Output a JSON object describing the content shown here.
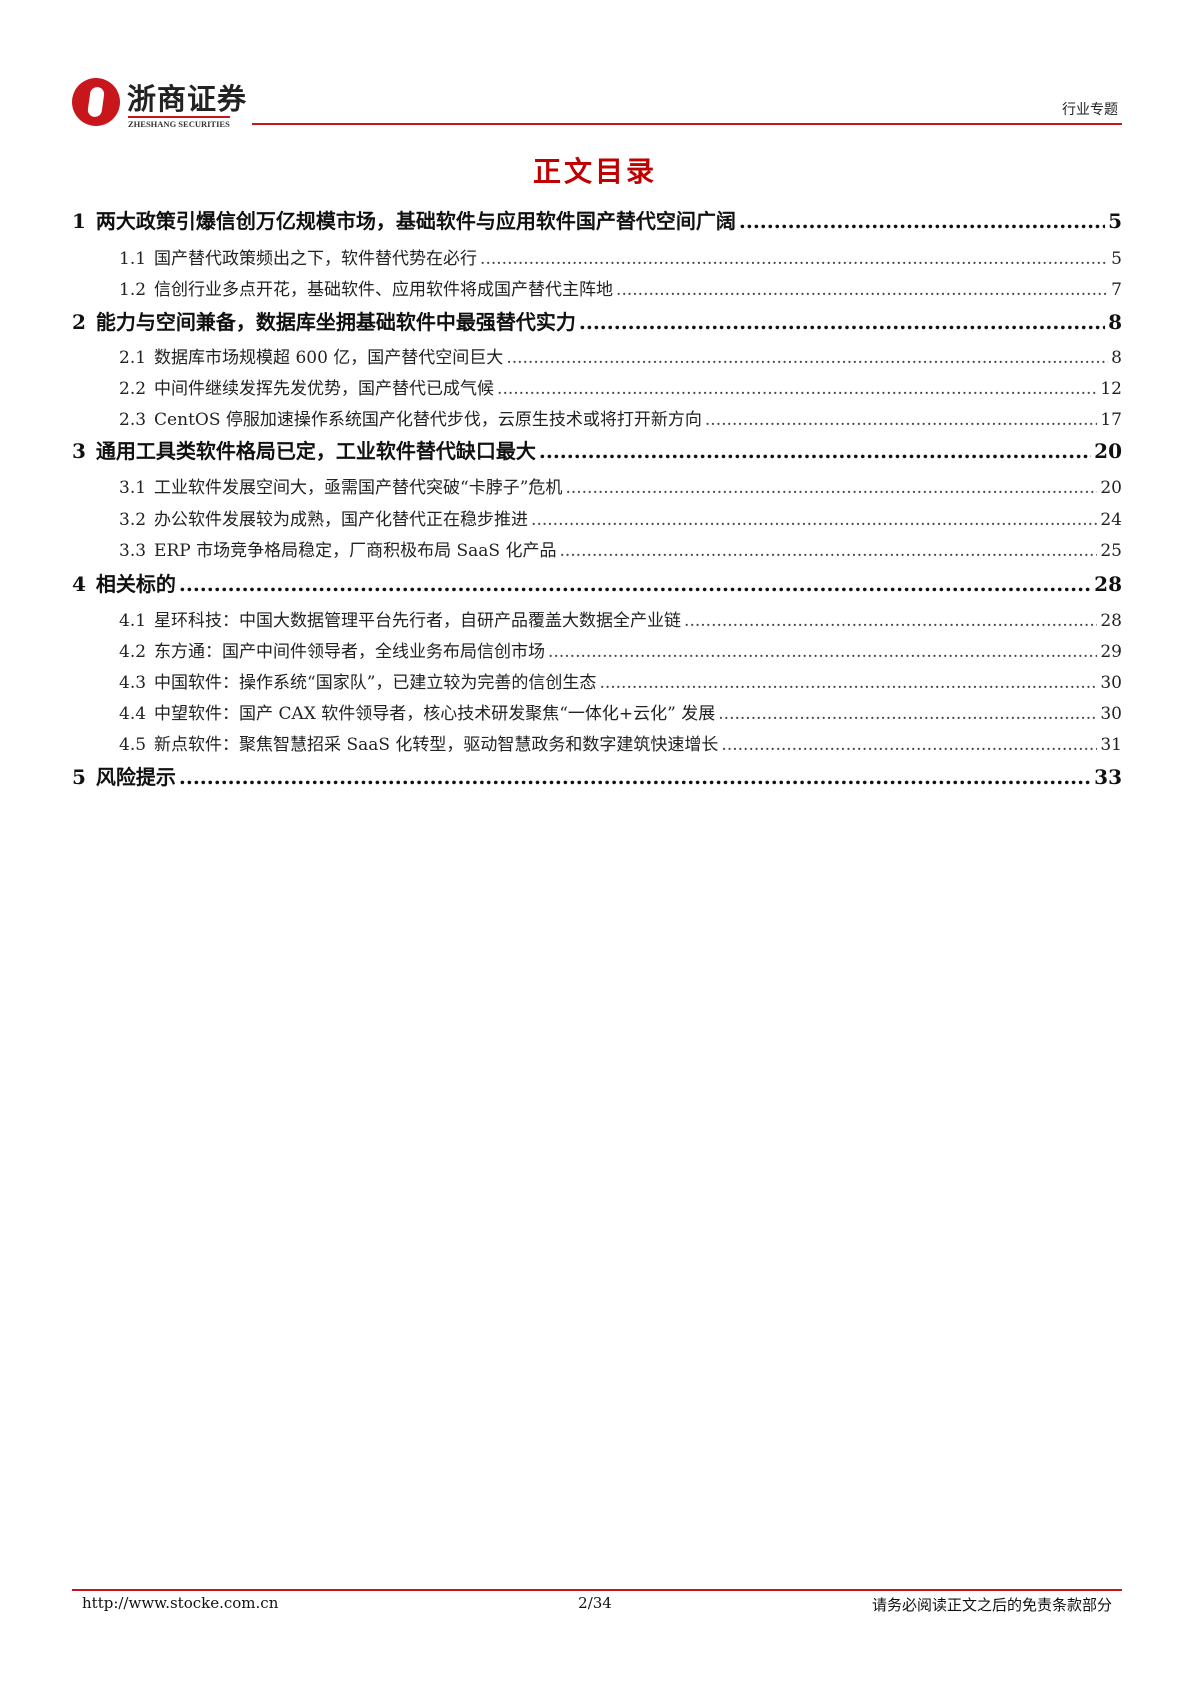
{
  "header": {
    "logo_cn": "浙商证券",
    "logo_en": "ZHESHANG SECURITIES",
    "tag": "行业专题",
    "brand_color": "#c8161d"
  },
  "title": "正文目录",
  "toc": [
    {
      "level": 1,
      "num": "1",
      "text": "两大政策引爆信创万亿规模市场，基础软件与应用软件国产替代空间广阔",
      "page": "5"
    },
    {
      "level": 2,
      "num": "1.1",
      "text": "国产替代政策频出之下，软件替代势在必行",
      "page": "5"
    },
    {
      "level": 2,
      "num": "1.2",
      "text": "信创行业多点开花，基础软件、应用软件将成国产替代主阵地",
      "page": "7"
    },
    {
      "level": 1,
      "num": "2",
      "text": "能力与空间兼备，数据库坐拥基础软件中最强替代实力",
      "page": "8"
    },
    {
      "level": 2,
      "num": "2.1",
      "text": "数据库市场规模超 600 亿，国产替代空间巨大",
      "page": "8"
    },
    {
      "level": 2,
      "num": "2.2",
      "text": "中间件继续发挥先发优势，国产替代已成气候",
      "page": "12"
    },
    {
      "level": 2,
      "num": "2.3",
      "text": "CentOS 停服加速操作系统国产化替代步伐，云原生技术或将打开新方向",
      "page": "17"
    },
    {
      "level": 1,
      "num": "3",
      "text": "通用工具类软件格局已定，工业软件替代缺口最大",
      "page": "20"
    },
    {
      "level": 2,
      "num": "3.1",
      "text": "工业软件发展空间大，亟需国产替代突破“卡脖子”危机",
      "page": "20"
    },
    {
      "level": 2,
      "num": "3.2",
      "text": "办公软件发展较为成熟，国产化替代正在稳步推进",
      "page": "24"
    },
    {
      "level": 2,
      "num": "3.3",
      "text": "ERP 市场竞争格局稳定，厂商积极布局 SaaS 化产品",
      "page": "25"
    },
    {
      "level": 1,
      "num": "4",
      "text": "相关标的",
      "page": "28"
    },
    {
      "level": 2,
      "num": "4.1",
      "text": "星环科技：中国大数据管理平台先行者，自研产品覆盖大数据全产业链",
      "page": "28"
    },
    {
      "level": 2,
      "num": "4.2",
      "text": "东方通：国产中间件领导者，全线业务布局信创市场",
      "page": "29"
    },
    {
      "level": 2,
      "num": "4.3",
      "text": "中国软件：操作系统“国家队”，已建立较为完善的信创生态",
      "page": "30"
    },
    {
      "level": 2,
      "num": "4.4",
      "text": "中望软件：国产 CAX 软件领导者，核心技术研发聚焦“一体化+云化” 发展",
      "page": "30"
    },
    {
      "level": 2,
      "num": "4.5",
      "text": "新点软件：聚焦智慧招采 SaaS 化转型，驱动智慧政务和数字建筑快速增长",
      "page": "31"
    },
    {
      "level": 1,
      "num": "5",
      "text": "风险提示",
      "page": "33"
    }
  ],
  "footer": {
    "url": "http://www.stocke.com.cn",
    "page": "2/34",
    "note": "请务必阅读正文之后的免责条款部分"
  }
}
